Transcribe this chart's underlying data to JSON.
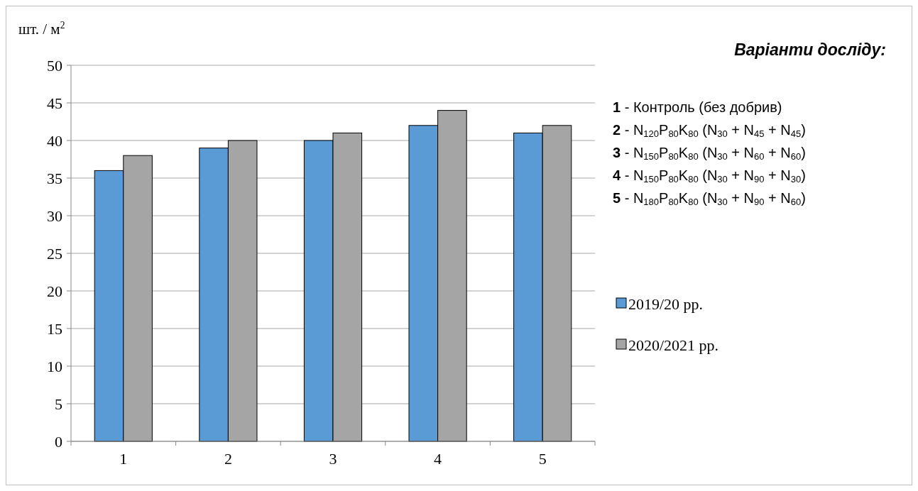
{
  "chart_data": {
    "type": "bar",
    "ylabel": "шт. / м$^{2}$",
    "legend_title": "Варіанти досліду:",
    "categories": [
      "1",
      "2",
      "3",
      "4",
      "5"
    ],
    "series": [
      {
        "name": "2019/20 рр.",
        "color": "#5b9bd5",
        "values": [
          36,
          39,
          40,
          42,
          41
        ]
      },
      {
        "name": "2020/2021 рр.",
        "color": "#a5a5a5",
        "values": [
          38,
          40,
          41,
          44,
          42
        ]
      }
    ],
    "ylim": [
      0,
      50
    ],
    "yticks": [
      0,
      5,
      10,
      15,
      20,
      25,
      30,
      35,
      40,
      45,
      50
    ],
    "grid": "y",
    "legend": "right",
    "annotations": [
      "1 - Контроль (без добрив)",
      "2 - N$_{120}$P$_{80}$K$_{80}$ (N$_{30}$ + N$_{45}$ + N$_{45}$)",
      "3 - N$_{150}$P$_{80}$K$_{80}$ (N$_{30}$ + N$_{60}$ + N$_{60}$)",
      "4 - N$_{150}$P$_{80}$K$_{80}$ (N$_{30}$ + N$_{90}$ + N$_{30}$)",
      "5 - N$_{180}$P$_{80}$K$_{80}$ (N$_{30}$ + N$_{90}$ + N$_{60}$)"
    ]
  }
}
